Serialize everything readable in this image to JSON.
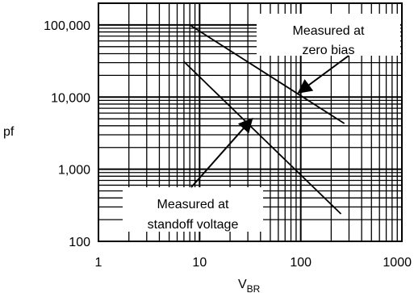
{
  "chart_data": {
    "type": "line",
    "title": "",
    "xlabel": "V",
    "xlabel_sub": "BR",
    "ylabel": "pf",
    "xscale": "log",
    "yscale": "log",
    "xlim": [
      1,
      1000
    ],
    "ylim": [
      100,
      200000
    ],
    "grid": true,
    "x_ticks": [
      {
        "value": 1,
        "label": "1"
      },
      {
        "value": 10,
        "label": "10"
      },
      {
        "value": 100,
        "label": "100"
      },
      {
        "value": 1000,
        "label": "1000"
      }
    ],
    "y_ticks": [
      {
        "value": 100,
        "label": "100"
      },
      {
        "value": 1000,
        "label": "1,000"
      },
      {
        "value": 10000,
        "label": "10,000"
      },
      {
        "value": 100000,
        "label": "100,000"
      }
    ],
    "series": [
      {
        "key": "zero-bias",
        "x": [
          8,
          270
        ],
        "y": [
          100000,
          4300
        ]
      },
      {
        "key": "standoff",
        "x": [
          7,
          250
        ],
        "y": [
          31000,
          240
        ]
      }
    ],
    "annotations": [
      {
        "key": "zero-bias",
        "lines": [
          "Measured at",
          "zero bias"
        ],
        "arrow_to": {
          "x": 95,
          "y": 11500
        }
      },
      {
        "key": "standoff",
        "lines": [
          "Measured at",
          "standoff voltage"
        ],
        "arrow_to": {
          "x": 33,
          "y": 5000
        }
      }
    ]
  }
}
